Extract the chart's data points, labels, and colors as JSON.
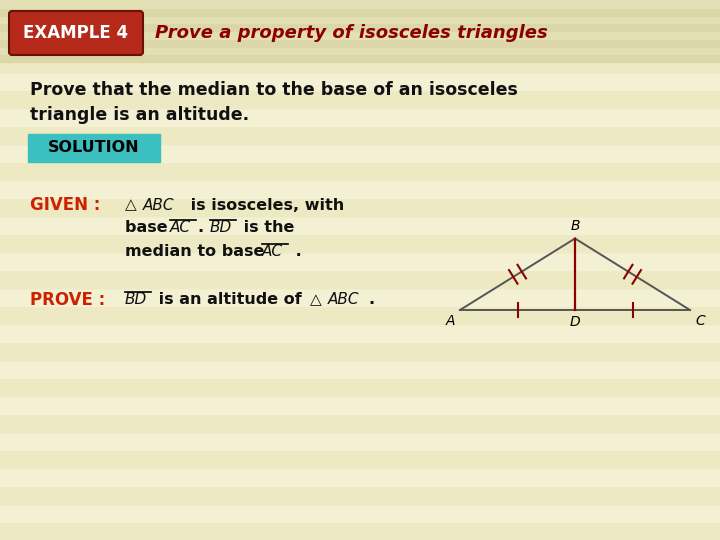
{
  "bg_color": "#f0edcc",
  "stripe_color_a": "#ede9c2",
  "stripe_color_b": "#f3f0d4",
  "header_bg_a": "#dbd7a8",
  "header_bg_b": "#e3e0b5",
  "example_box_color": "#b52a1a",
  "example_box_text": "EXAMPLE 4",
  "header_title": "Prove a property of isosceles triangles",
  "header_title_color": "#8b0000",
  "main_text_line1": "Prove that the median to the base of an isosceles",
  "main_text_line2": "triangle is an altitude.",
  "solution_box_color": "#3bbfbf",
  "solution_text": "SOLUTION",
  "given_label": "GIVEN :",
  "given_color": "#cc2200",
  "prove_label": "PROVE :",
  "prove_color": "#cc2200",
  "tri_A": [
    0.0,
    0.0
  ],
  "tri_B": [
    1.0,
    0.65
  ],
  "tri_C": [
    2.0,
    0.0
  ],
  "tri_D": [
    1.0,
    0.0
  ],
  "tri_color": "#555555",
  "altitude_color": "#8b0000",
  "tick_color": "#8b0000",
  "text_color": "#111111"
}
